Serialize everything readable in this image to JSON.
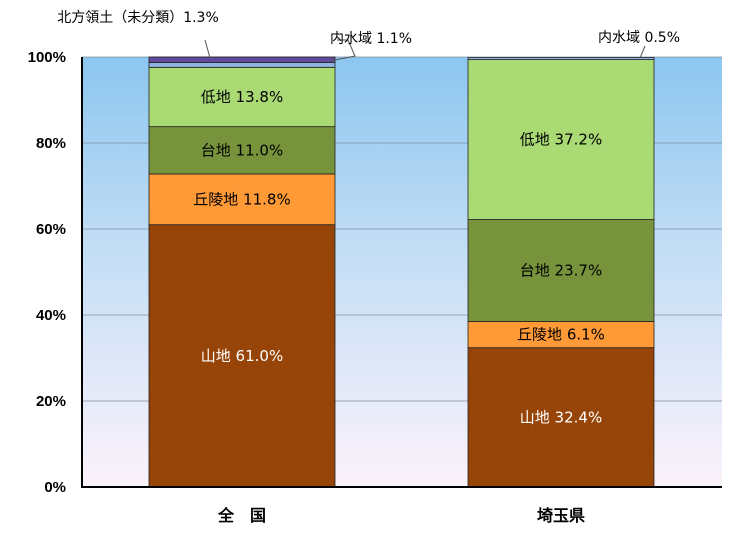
{
  "chart_data": {
    "type": "bar",
    "stacked": true,
    "y_unit": "percent",
    "ylim": [
      0,
      100
    ],
    "y_ticks": [
      "0%",
      "20%",
      "40%",
      "60%",
      "80%",
      "100%"
    ],
    "gridlines": true,
    "legend": "none",
    "categories": [
      "全　国",
      "埼玉県"
    ],
    "series": [
      {
        "name": "山地",
        "values": [
          61.0,
          32.4
        ],
        "color": "#964408"
      },
      {
        "name": "丘陵地",
        "values": [
          11.8,
          6.1
        ],
        "color": "#ff9a37"
      },
      {
        "name": "台地",
        "values": [
          11.0,
          23.7
        ],
        "color": "#77933c"
      },
      {
        "name": "低地",
        "values": [
          13.8,
          37.2
        ],
        "color": "#a9da74"
      },
      {
        "name": "内水域",
        "values": [
          1.1,
          0.5
        ],
        "color": "#8eb4e3"
      },
      {
        "name": "北方領土（未分類）",
        "values": [
          1.3,
          0
        ],
        "color": "#604a9b"
      }
    ],
    "inside_labels": [
      [
        "山地 61.0%",
        "丘陵地 11.8%",
        "台地 11.0%",
        "低地 13.8%",
        "",
        ""
      ],
      [
        "山地 32.4%",
        "丘陵地 6.1%",
        "台地 23.7%",
        "低地 37.2%",
        "",
        ""
      ]
    ],
    "outside_labels": [
      {
        "category": 0,
        "series": 4,
        "text": "内水域 1.1%"
      },
      {
        "category": 0,
        "series": 5,
        "text": "北方領土（未分類）1.3%"
      },
      {
        "category": 1,
        "series": 4,
        "text": "内水域 0.5%"
      }
    ]
  }
}
